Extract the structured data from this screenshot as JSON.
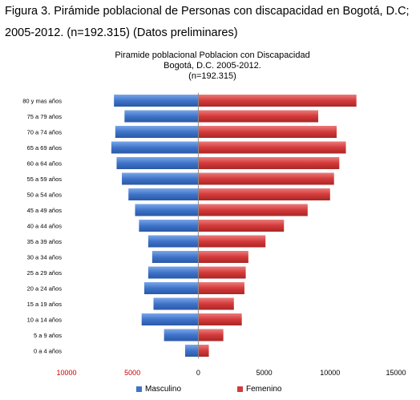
{
  "caption": {
    "line1": "Figura 3. Pirámide poblacional  de Personas con discapacidad  en Bogotá, D.C;",
    "line2": "2005-2012. (n=192.315) (Datos preliminares)"
  },
  "colors": {
    "masculino": "#3f74c9",
    "femenino": "#d43a3a",
    "negative_tick": "#cc0000",
    "axis": "#8c8c8c"
  },
  "chart_data": {
    "type": "bar",
    "orientation": "horizontal",
    "title": [
      "Piramide poblacional  Poblacion con  Discapacidad",
      "Bogotá, D.C. 2005-2012.",
      "(n=192.315)"
    ],
    "categories": [
      "80 y mas años",
      "75 a 79 años",
      "70 a  74 años",
      "65 a 69 años",
      "60 a 64 años",
      "55 a 59 años",
      "50 a 54 años",
      "45 a 49 años",
      "40 a 44 años",
      "35 a 39 años",
      "30 a 34 años",
      "25 a 29 años",
      "20 a 24 años",
      "15 a 19 años",
      "10 a 14 años",
      "5 a 9 años",
      "0 a 4 años"
    ],
    "series": [
      {
        "name": "Masculino",
        "values": [
          -6400,
          -5600,
          -6300,
          -6600,
          -6200,
          -5800,
          -5300,
          -4800,
          -4500,
          -3800,
          -3500,
          -3800,
          -4100,
          -3400,
          -4300,
          -2600,
          -1000
        ]
      },
      {
        "name": "Femenino",
        "values": [
          12000,
          9100,
          10500,
          11200,
          10700,
          10300,
          10000,
          8300,
          6500,
          5100,
          3800,
          3600,
          3500,
          2700,
          3300,
          1900,
          800
        ]
      }
    ],
    "xlim": [
      -10000,
      15000
    ],
    "xticks": [
      -10000,
      -5000,
      0,
      5000,
      10000,
      15000
    ],
    "xtick_labels": [
      "10000",
      "5000",
      "0",
      "5000",
      "10000",
      "15000"
    ],
    "grid": false,
    "legend_position": "bottom"
  }
}
